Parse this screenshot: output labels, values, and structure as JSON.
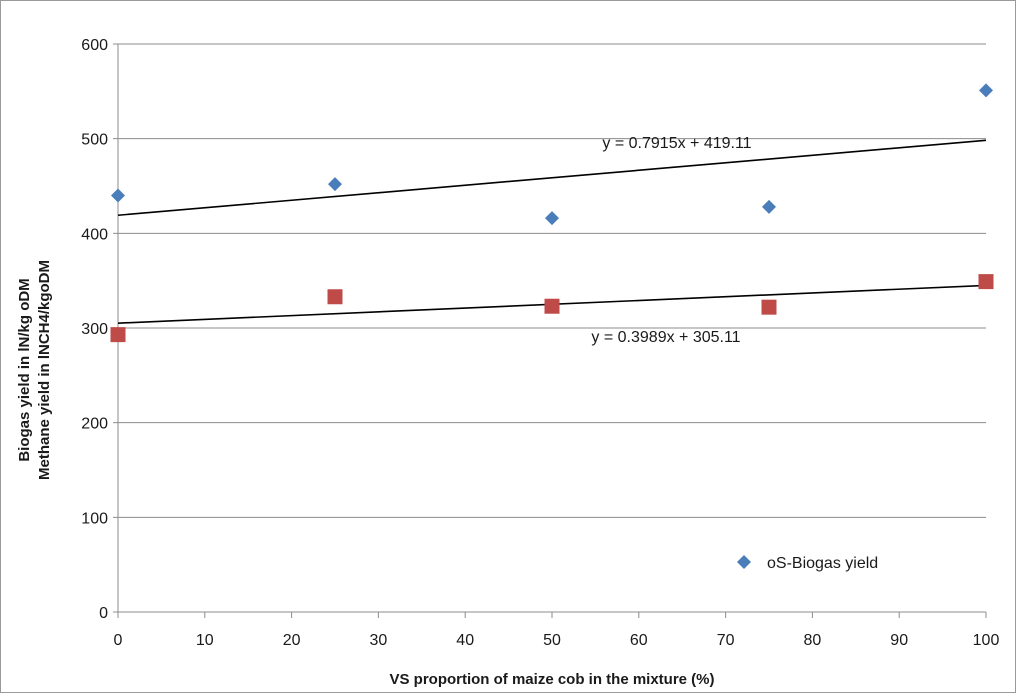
{
  "chart_data": {
    "type": "scatter",
    "title": "",
    "xlabel": "VS proportion of maize cob in the mixture (%)",
    "ylabel_lines": [
      "Biogas yield in lN/kg oDM",
      "Methane yield in  lNCH4/kgoDM"
    ],
    "xlim": [
      0,
      100
    ],
    "ylim": [
      0,
      600
    ],
    "xticks": [
      0,
      10,
      20,
      30,
      40,
      50,
      60,
      70,
      80,
      90,
      100
    ],
    "yticks": [
      0,
      100,
      200,
      300,
      400,
      500,
      600
    ],
    "grid": "horizontal major gridlines",
    "legend_position": "bottom-right (inside plot)",
    "series": [
      {
        "name": "oS-Biogas yield",
        "marker": "diamond",
        "color": "#4a7ebb",
        "x": [
          0,
          25,
          50,
          75,
          100
        ],
        "y": [
          440,
          452,
          416,
          428,
          551
        ],
        "trendline": {
          "slope": 0.7915,
          "intercept": 419.11,
          "label": "y = 0.7915x + 419.11"
        }
      },
      {
        "marker": "square",
        "color": "#be4b48",
        "x": [
          0,
          25,
          50,
          75,
          100
        ],
        "y": [
          293,
          333,
          323,
          322,
          349
        ],
        "trendline": {
          "slope": 0.3989,
          "intercept": 305.11,
          "label": "y = 0.3989x + 305.11"
        }
      }
    ],
    "legend": [
      {
        "series": 0,
        "label": "oS-Biogas yield"
      }
    ]
  }
}
